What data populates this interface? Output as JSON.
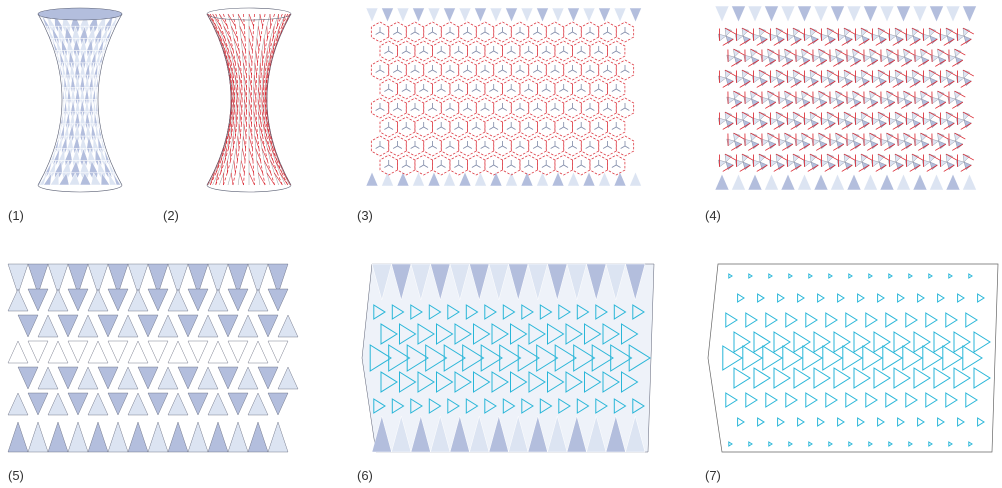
{
  "panels": [
    {
      "label": "(1)"
    },
    {
      "label": "(2)"
    },
    {
      "label": "(3)"
    },
    {
      "label": "(4)"
    },
    {
      "label": "(5)"
    },
    {
      "label": "(6)"
    },
    {
      "label": "(7)"
    }
  ],
  "colors": {
    "fill_dark": "#b3bedd",
    "fill_light": "#dce4f2",
    "outline": "#5a5f73",
    "crease_red": "#d9232d",
    "cyan": "#29b6d8",
    "label_text": "#333333"
  }
}
